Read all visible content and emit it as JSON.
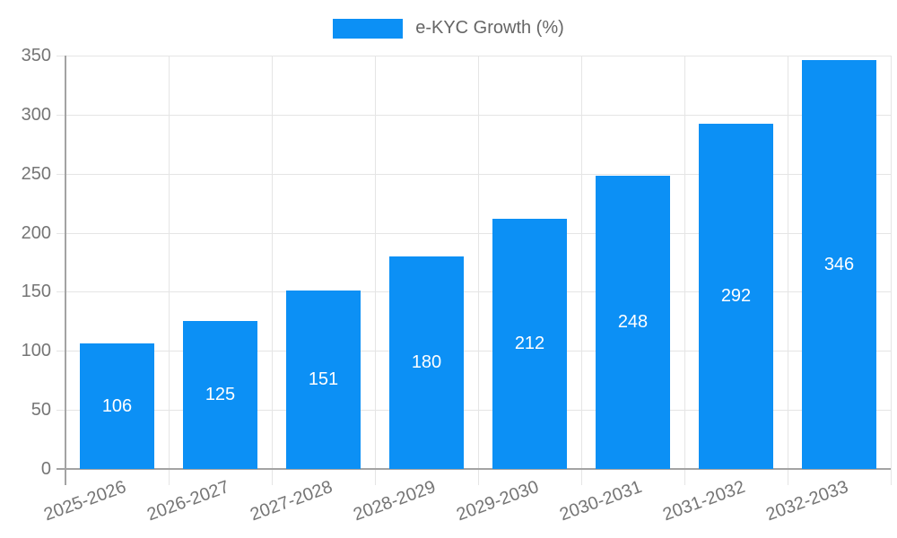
{
  "chart_data": {
    "type": "bar",
    "title": "",
    "series_name": "e-KYC Growth (%)",
    "legend_position": "top",
    "categories": [
      "2025-2026",
      "2026-2027",
      "2027-2028",
      "2028-2029",
      "2029-2030",
      "2030-2031",
      "2031-2032",
      "2032-2033"
    ],
    "values": [
      106,
      125,
      151,
      180,
      212,
      248,
      292,
      346
    ],
    "xlabel": "",
    "ylabel": "",
    "ylim": [
      0,
      350
    ],
    "y_ticks": [
      0,
      50,
      100,
      150,
      200,
      250,
      300,
      350
    ],
    "grid": true,
    "x_label_rotation_deg": -20,
    "value_labels": "centered inside bars",
    "colors": {
      "bar": "#0c90f5",
      "grid": "#e5e5e5",
      "axis": "#a3a3a3",
      "tick_text": "#757575",
      "legend_text": "#666666",
      "value_text": "#ffffff",
      "background": "#ffffff"
    }
  }
}
